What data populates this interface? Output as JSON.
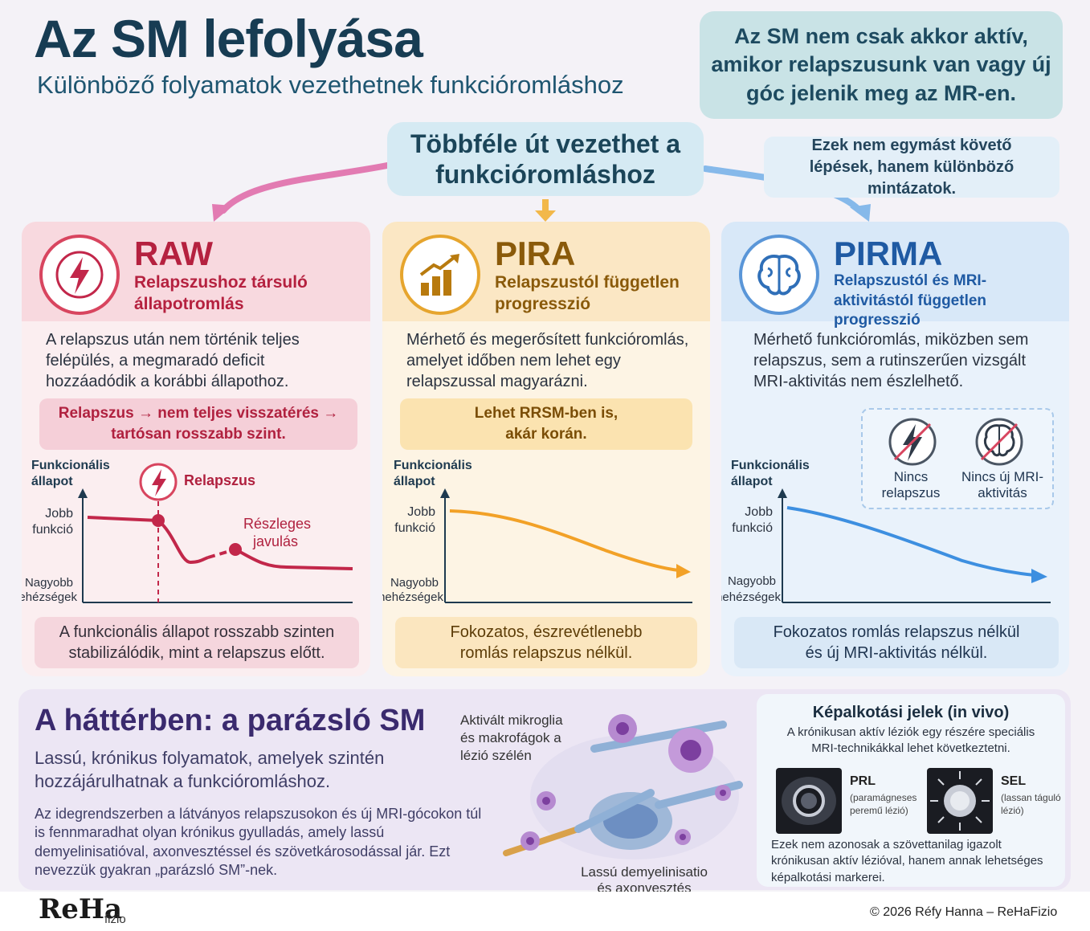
{
  "header": {
    "title": "Az SM lefolyása",
    "subtitle": "Különböző folyamatok vezethetnek funkcióromláshoz",
    "note": "Az SM nem csak akkor aktív, amikor relapszusunk van vagy új góc jelenik meg az MR-en."
  },
  "paths": {
    "main": "Többféle út vezethet a funkcióromláshoz",
    "patterns": "Ezek nem egymást követő lépések, hanem különböző mintázatok."
  },
  "raw": {
    "icon": "lightning-icon",
    "title": "RAW",
    "subtitle": "Relapszushoz társuló állapotromlás",
    "desc": "A relapszus után nem történik teljes felépülés, a megmaradó deficit hozzáadódik a korábbi állapothoz.",
    "callout": "Relapszus → nem teljes visszatérés → tartósan rosszabb szint.",
    "chart": {
      "ylabel": "Funkcionális állapot",
      "top_label": "Jobb funkció",
      "bottom_label": "Nagyobb nehézségek",
      "relapse_label": "Relapszus",
      "partial_label": "Részleges javulás"
    },
    "footer": "A funkcionális állapot rosszabb szinten stabilizálódik, mint a relapszus előtt."
  },
  "pira": {
    "icon": "rising-bars-icon",
    "title": "PIRA",
    "subtitle": "Relapszustól független progresszió",
    "desc": "Mérhető és megerősített funkcióromlás, amelyet időben nem lehet egy relapszussal magyarázni.",
    "callout": "Lehet RRSM-ben is, akár korán.",
    "chart": {
      "ylabel": "Funkcionális állapot",
      "top_label": "Jobb funkció",
      "bottom_label": "Nagyobb nehézségek"
    },
    "footer": "Fokozatos, észrevétlenebb romlás relapszus nélkül."
  },
  "pirma": {
    "icon": "brain-icon",
    "title": "PIRMA",
    "subtitle": "Relapszustól és MRI-aktivitástól független progresszió",
    "desc": "Mérhető funkcióromlás, miközben sem relapszus, sem a rutinszerűen vizsgált MRI-aktivitás nem észlelhető.",
    "no_relapse": "Nincs relapszus",
    "no_mri": "Nincs új MRI-aktivitás",
    "chart": {
      "ylabel": "Funkcionális állapot",
      "top_label": "Jobb funkció",
      "bottom_label": "Nagyobb nehézségek"
    },
    "footer": "Fokozatos romlás relapszus nélkül és új MRI-aktivitás nélkül."
  },
  "background": {
    "title": "A háttérben: a parázsló SM",
    "subtitle": "Lassú, krónikus folyamatok, amelyek szintén hozzájárulhatnak a funkcióromláshoz.",
    "desc": "Az idegrendszerben a látványos relapszusokon és új MRI-gócokon túl is fennmaradhat olyan krónikus gyulladás, amely lassú demyelinisatióval, axonvesztéssel és szövetkárosodással jár. Ezt nevezzük gyakran „parázsló SM”-nek.",
    "microglia_label": "Aktivált mikroglia és makrofágok a lézió szélén",
    "demyel_label": "Lassú demyelinisatio és axonvesztés"
  },
  "imaging": {
    "title": "Képalkotási jelek (in vivo)",
    "subtitle": "A krónikusan aktív léziók egy részére speciális MRI-technikákkal lehet következtetni.",
    "prl": "PRL",
    "prl_sub": "(paramágneses peremű lézió)",
    "sel": "SEL",
    "sel_sub": "(lassan táguló lézió)",
    "footer": "Ezek nem azonosak a szövettanilag igazolt krónikusan aktív lézióval, hanem annak lehetséges képalkotási markerei."
  },
  "footer": {
    "logo": "ReHa",
    "logo_suffix": "fizio",
    "copyright": "© 2026 Réfy Hanna – ReHaFizio"
  },
  "colors": {
    "raw": "#c2274a",
    "pira": "#b87a0e",
    "pirma": "#2f7fd0",
    "title": "#173c53"
  }
}
